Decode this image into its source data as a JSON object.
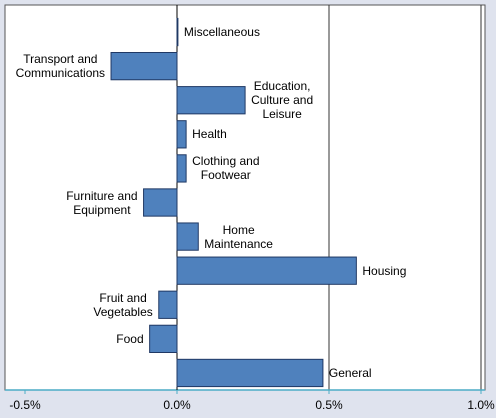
{
  "chart_data": {
    "type": "bar",
    "orientation": "horizontal",
    "categories": [
      "Miscellaneous",
      "Transport and\nCommunications",
      "Education,\nCulture and\nLeisure",
      "Health",
      "Clothing and\nFootwear",
      "Furniture and\nEquipment",
      "Home\nMaintenance",
      "Housing",
      "Fruit and\nVegetables",
      "Food",
      "General"
    ],
    "values": [
      0.003,
      -0.217,
      0.224,
      0.03,
      0.03,
      -0.11,
      0.07,
      0.59,
      -0.06,
      -0.09,
      0.48
    ],
    "color": "#4f81bd",
    "xlim": [
      -0.5,
      1.0
    ],
    "xticks": [
      {
        "value": -0.5,
        "label": "-0.5%"
      },
      {
        "value": 0,
        "label": "0.0%"
      },
      {
        "value": 0.5,
        "label": "0.5%"
      },
      {
        "value": 1.0,
        "label": "1.0%"
      }
    ],
    "grid": true
  }
}
